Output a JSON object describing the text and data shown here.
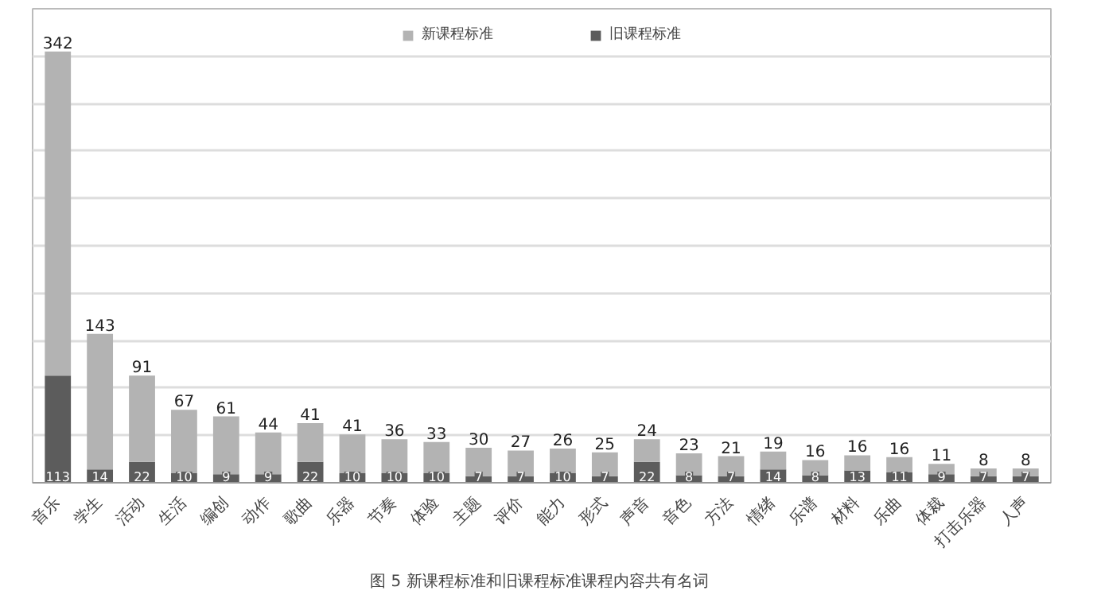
{
  "chart_data": {
    "type": "bar",
    "stacked": true,
    "title": "图 5  新课程标准和旧课程标准课程内容共有名词",
    "categories": [
      "音乐",
      "学生",
      "活动",
      "生活",
      "编创",
      "动作",
      "歌曲",
      "乐器",
      "节奏",
      "体验",
      "主题",
      "评价",
      "能力",
      "形式",
      "声音",
      "音色",
      "方法",
      "情绪",
      "乐谱",
      "材料",
      "乐曲",
      "体裁",
      "打击乐器",
      "人声"
    ],
    "series": [
      {
        "name": "旧课程标准",
        "color": "#5c5c5c",
        "values": [
          113,
          14,
          22,
          10,
          9,
          9,
          22,
          10,
          10,
          10,
          7,
          7,
          10,
          7,
          22,
          8,
          7,
          14,
          8,
          13,
          11,
          9,
          7,
          7
        ]
      },
      {
        "name": "新课程标准",
        "color": "#b3b3b3",
        "values": [
          342,
          143,
          91,
          67,
          61,
          44,
          41,
          41,
          36,
          33,
          30,
          27,
          26,
          25,
          24,
          23,
          21,
          19,
          16,
          16,
          16,
          11,
          8,
          8
        ]
      }
    ],
    "ylim": [
      0,
      500
    ],
    "yticks": [
      {
        "value": 0,
        "label": null
      },
      {
        "value": 50,
        "label": null
      },
      {
        "value": 100,
        "label": null
      },
      {
        "value": 150,
        "label": null
      },
      {
        "value": 200,
        "label": null
      },
      {
        "value": 250,
        "label": null
      },
      {
        "value": 300,
        "label": null
      },
      {
        "value": 350,
        "label": null
      },
      {
        "value": 400,
        "label": null
      },
      {
        "value": 450,
        "label": null
      },
      {
        "value": 500,
        "label": null
      }
    ],
    "tick_labels": "x",
    "grid": "y",
    "legend": "top",
    "data_labels": true
  }
}
